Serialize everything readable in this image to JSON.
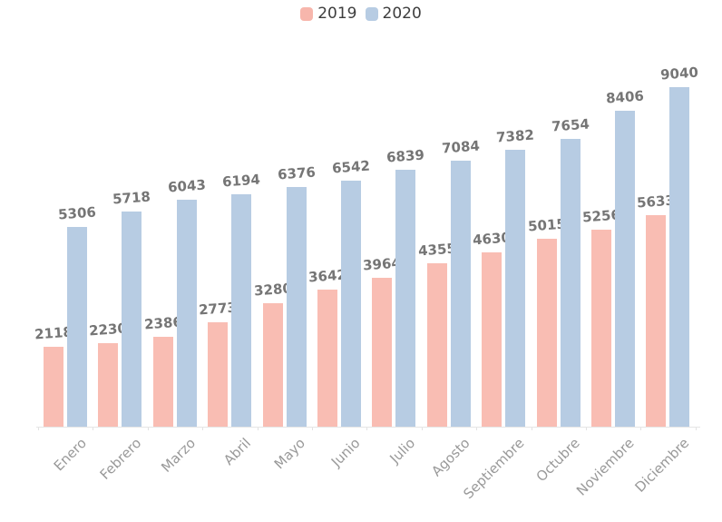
{
  "legend": {
    "items": [
      {
        "label": "2019",
        "color": "#F7B6AC"
      },
      {
        "label": "2020",
        "color": "#B7CCE3"
      }
    ]
  },
  "chart_data": {
    "type": "bar",
    "title": "",
    "xlabel": "",
    "ylabel": "",
    "categories": [
      "Enero",
      "Febrero",
      "Marzo",
      "Abril",
      "Mayo",
      "Junio",
      "Julio",
      "Agosto",
      "Septiembre",
      "Octubre",
      "Noviembre",
      "Diciembre"
    ],
    "series": [
      {
        "name": "2019",
        "color": "#F9BDB3",
        "values": [
          2118,
          2230,
          2386,
          2773,
          3280,
          3642,
          3964,
          4355,
          4630,
          5015,
          5256,
          5633
        ]
      },
      {
        "name": "2020",
        "color": "#B7CCE3",
        "values": [
          5306,
          5718,
          6043,
          6194,
          6376,
          6542,
          6839,
          7084,
          7382,
          7654,
          8406,
          9040
        ]
      }
    ],
    "ylim": [
      0,
      9040
    ],
    "grid": false,
    "value_labels": true,
    "legend_position": "top",
    "x_tick_rotation": 45
  },
  "colors": {
    "value_label": "#757575",
    "category_label": "#999999",
    "legend_text": "#3d3d3d",
    "axis_line": "#e6e6e6",
    "background": "#ffffff"
  }
}
